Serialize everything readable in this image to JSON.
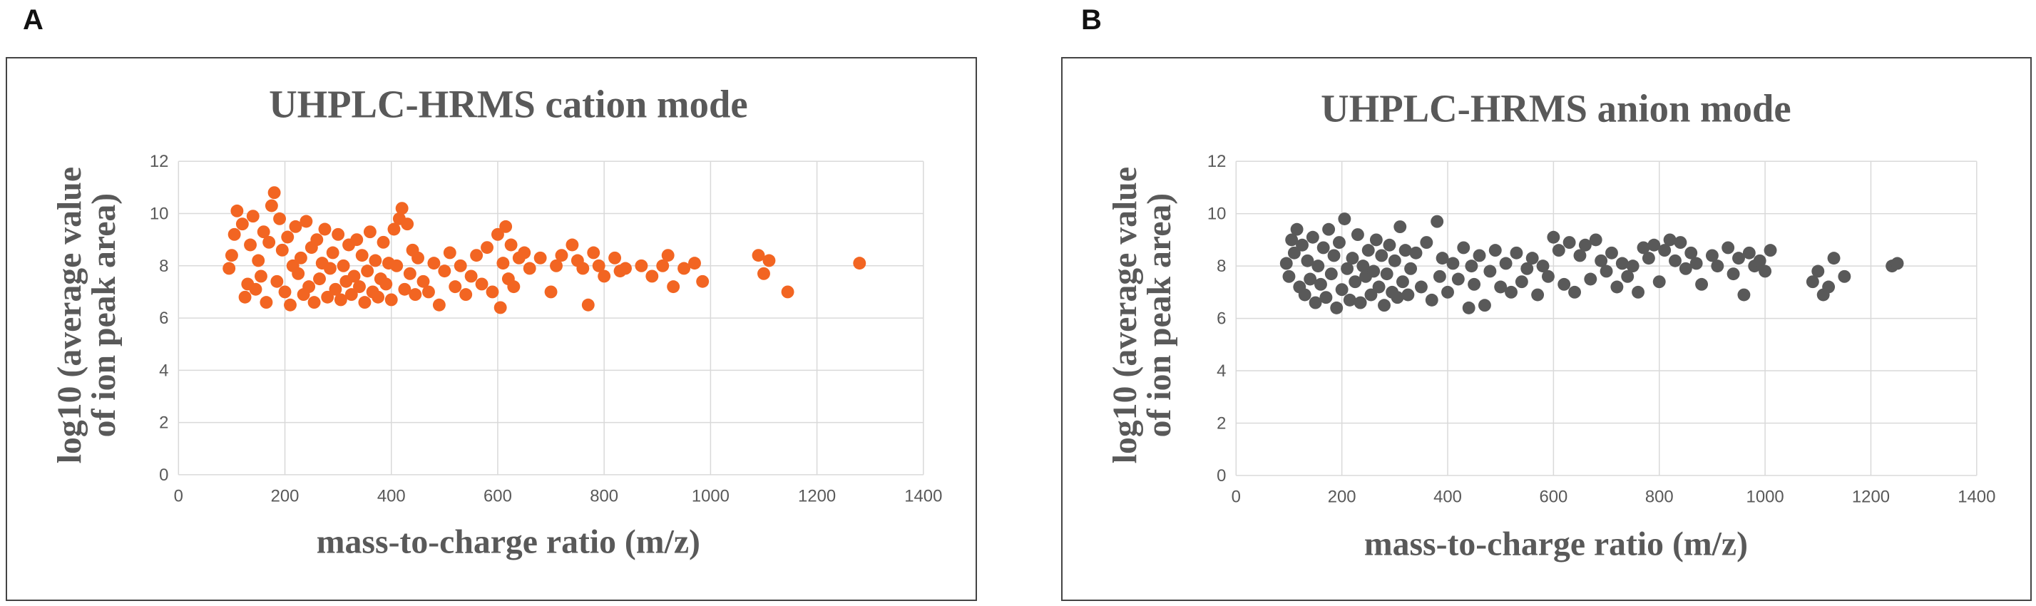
{
  "panels": [
    {
      "letter": "A"
    },
    {
      "letter": "B"
    }
  ],
  "chart_data": [
    {
      "type": "scatter",
      "title": "UHPLC-HRMS cation mode",
      "xlabel": "mass-to-charge ratio (m/z)",
      "ylabel": [
        "log10 (average value",
        "of ion peak area)"
      ],
      "xlim": [
        0,
        1400
      ],
      "ylim": [
        0,
        12
      ],
      "xticks": [
        0,
        200,
        400,
        600,
        800,
        1000,
        1200,
        1400
      ],
      "yticks": [
        0,
        2,
        4,
        6,
        8,
        10,
        12
      ],
      "grid": true,
      "legend": "none",
      "color": "#F26522",
      "series": [
        {
          "points": [
            [
              95,
              7.9
            ],
            [
              100,
              8.4
            ],
            [
              105,
              9.2
            ],
            [
              110,
              10.1
            ],
            [
              120,
              9.6
            ],
            [
              125,
              6.8
            ],
            [
              130,
              7.3
            ],
            [
              135,
              8.8
            ],
            [
              140,
              9.9
            ],
            [
              145,
              7.1
            ],
            [
              150,
              8.2
            ],
            [
              155,
              7.6
            ],
            [
              160,
              9.3
            ],
            [
              165,
              6.6
            ],
            [
              170,
              8.9
            ],
            [
              175,
              10.3
            ],
            [
              180,
              10.8
            ],
            [
              185,
              7.4
            ],
            [
              190,
              9.8
            ],
            [
              195,
              8.6
            ],
            [
              200,
              7.0
            ],
            [
              205,
              9.1
            ],
            [
              210,
              6.5
            ],
            [
              215,
              8.0
            ],
            [
              220,
              9.5
            ],
            [
              225,
              7.7
            ],
            [
              230,
              8.3
            ],
            [
              235,
              6.9
            ],
            [
              240,
              9.7
            ],
            [
              245,
              7.2
            ],
            [
              250,
              8.7
            ],
            [
              255,
              6.6
            ],
            [
              260,
              9.0
            ],
            [
              265,
              7.5
            ],
            [
              270,
              8.1
            ],
            [
              275,
              9.4
            ],
            [
              280,
              6.8
            ],
            [
              285,
              7.9
            ],
            [
              290,
              8.5
            ],
            [
              295,
              7.1
            ],
            [
              300,
              9.2
            ],
            [
              305,
              6.7
            ],
            [
              310,
              8.0
            ],
            [
              315,
              7.4
            ],
            [
              320,
              8.8
            ],
            [
              325,
              6.9
            ],
            [
              330,
              7.6
            ],
            [
              335,
              9.0
            ],
            [
              340,
              7.2
            ],
            [
              345,
              8.4
            ],
            [
              350,
              6.6
            ],
            [
              355,
              7.8
            ],
            [
              360,
              9.3
            ],
            [
              365,
              7.0
            ],
            [
              370,
              8.2
            ],
            [
              375,
              6.8
            ],
            [
              380,
              7.5
            ],
            [
              385,
              8.9
            ],
            [
              390,
              7.3
            ],
            [
              395,
              8.1
            ],
            [
              400,
              6.7
            ],
            [
              405,
              9.4
            ],
            [
              410,
              8.0
            ],
            [
              415,
              9.8
            ],
            [
              420,
              10.2
            ],
            [
              425,
              7.1
            ],
            [
              430,
              9.6
            ],
            [
              435,
              7.7
            ],
            [
              440,
              8.6
            ],
            [
              445,
              6.9
            ],
            [
              450,
              8.3
            ],
            [
              460,
              7.4
            ],
            [
              470,
              7.0
            ],
            [
              480,
              8.1
            ],
            [
              490,
              6.5
            ],
            [
              500,
              7.8
            ],
            [
              510,
              8.5
            ],
            [
              520,
              7.2
            ],
            [
              530,
              8.0
            ],
            [
              540,
              6.9
            ],
            [
              550,
              7.6
            ],
            [
              560,
              8.4
            ],
            [
              570,
              7.3
            ],
            [
              580,
              8.7
            ],
            [
              590,
              7.0
            ],
            [
              600,
              9.2
            ],
            [
              605,
              6.4
            ],
            [
              610,
              8.1
            ],
            [
              615,
              9.5
            ],
            [
              620,
              7.5
            ],
            [
              625,
              8.8
            ],
            [
              630,
              7.2
            ],
            [
              640,
              8.3
            ],
            [
              650,
              8.5
            ],
            [
              660,
              7.9
            ],
            [
              680,
              8.3
            ],
            [
              700,
              7.0
            ],
            [
              710,
              8.0
            ],
            [
              720,
              8.4
            ],
            [
              740,
              8.8
            ],
            [
              750,
              8.2
            ],
            [
              760,
              7.9
            ],
            [
              770,
              6.5
            ],
            [
              780,
              8.5
            ],
            [
              790,
              8.0
            ],
            [
              800,
              7.6
            ],
            [
              820,
              8.3
            ],
            [
              830,
              7.8
            ],
            [
              840,
              7.9
            ],
            [
              870,
              8.0
            ],
            [
              890,
              7.6
            ],
            [
              910,
              8.0
            ],
            [
              920,
              8.4
            ],
            [
              930,
              7.2
            ],
            [
              950,
              7.9
            ],
            [
              970,
              8.1
            ],
            [
              985,
              7.4
            ],
            [
              1090,
              8.4
            ],
            [
              1100,
              7.7
            ],
            [
              1110,
              8.2
            ],
            [
              1145,
              7.0
            ],
            [
              1280,
              8.1
            ]
          ]
        }
      ]
    },
    {
      "type": "scatter",
      "title": "UHPLC-HRMS anion mode",
      "xlabel": "mass-to-charge ratio (m/z)",
      "ylabel": [
        "log10 (average value",
        "of ion peak area)"
      ],
      "xlim": [
        0,
        1400
      ],
      "ylim": [
        0,
        12
      ],
      "xticks": [
        0,
        200,
        400,
        600,
        800,
        1000,
        1200,
        1400
      ],
      "yticks": [
        0,
        2,
        4,
        6,
        8,
        10,
        12
      ],
      "grid": true,
      "legend": "none",
      "color": "#595959",
      "series": [
        {
          "points": [
            [
              95,
              8.1
            ],
            [
              100,
              7.6
            ],
            [
              105,
              9.0
            ],
            [
              110,
              8.5
            ],
            [
              115,
              9.4
            ],
            [
              120,
              7.2
            ],
            [
              125,
              8.8
            ],
            [
              130,
              6.9
            ],
            [
              135,
              8.2
            ],
            [
              140,
              7.5
            ],
            [
              145,
              9.1
            ],
            [
              150,
              6.6
            ],
            [
              155,
              8.0
            ],
            [
              160,
              7.3
            ],
            [
              165,
              8.7
            ],
            [
              170,
              6.8
            ],
            [
              175,
              9.4
            ],
            [
              180,
              7.7
            ],
            [
              185,
              8.4
            ],
            [
              190,
              6.4
            ],
            [
              195,
              8.9
            ],
            [
              200,
              7.1
            ],
            [
              205,
              9.8
            ],
            [
              210,
              7.9
            ],
            [
              215,
              6.7
            ],
            [
              220,
              8.3
            ],
            [
              225,
              7.4
            ],
            [
              230,
              9.2
            ],
            [
              235,
              6.6
            ],
            [
              240,
              8.0
            ],
            [
              245,
              7.6
            ],
            [
              250,
              8.6
            ],
            [
              255,
              6.9
            ],
            [
              260,
              7.8
            ],
            [
              265,
              9.0
            ],
            [
              270,
              7.2
            ],
            [
              275,
              8.4
            ],
            [
              280,
              6.5
            ],
            [
              285,
              7.7
            ],
            [
              290,
              8.8
            ],
            [
              295,
              7.0
            ],
            [
              300,
              8.2
            ],
            [
              305,
              6.8
            ],
            [
              310,
              9.5
            ],
            [
              315,
              7.4
            ],
            [
              320,
              8.6
            ],
            [
              325,
              6.9
            ],
            [
              330,
              7.9
            ],
            [
              340,
              8.5
            ],
            [
              350,
              7.2
            ],
            [
              360,
              8.9
            ],
            [
              370,
              6.7
            ],
            [
              380,
              9.7
            ],
            [
              385,
              7.6
            ],
            [
              390,
              8.3
            ],
            [
              400,
              7.0
            ],
            [
              410,
              8.1
            ],
            [
              420,
              7.5
            ],
            [
              430,
              8.7
            ],
            [
              440,
              6.4
            ],
            [
              445,
              8.0
            ],
            [
              450,
              7.3
            ],
            [
              460,
              8.4
            ],
            [
              470,
              6.5
            ],
            [
              480,
              7.8
            ],
            [
              490,
              8.6
            ],
            [
              500,
              7.2
            ],
            [
              510,
              8.1
            ],
            [
              520,
              7.0
            ],
            [
              530,
              8.5
            ],
            [
              540,
              7.4
            ],
            [
              550,
              7.9
            ],
            [
              560,
              8.3
            ],
            [
              570,
              6.9
            ],
            [
              580,
              8.0
            ],
            [
              590,
              7.6
            ],
            [
              600,
              9.1
            ],
            [
              610,
              8.6
            ],
            [
              620,
              7.3
            ],
            [
              630,
              8.9
            ],
            [
              640,
              7.0
            ],
            [
              650,
              8.4
            ],
            [
              660,
              8.8
            ],
            [
              670,
              7.5
            ],
            [
              680,
              9.0
            ],
            [
              690,
              8.2
            ],
            [
              700,
              7.8
            ],
            [
              710,
              8.5
            ],
            [
              720,
              7.2
            ],
            [
              730,
              8.1
            ],
            [
              740,
              7.6
            ],
            [
              750,
              8.0
            ],
            [
              760,
              7.0
            ],
            [
              770,
              8.7
            ],
            [
              780,
              8.3
            ],
            [
              790,
              8.8
            ],
            [
              800,
              7.4
            ],
            [
              810,
              8.6
            ],
            [
              820,
              9.0
            ],
            [
              830,
              8.2
            ],
            [
              840,
              8.9
            ],
            [
              850,
              7.9
            ],
            [
              860,
              8.5
            ],
            [
              870,
              8.1
            ],
            [
              880,
              7.3
            ],
            [
              900,
              8.4
            ],
            [
              910,
              8.0
            ],
            [
              930,
              8.7
            ],
            [
              940,
              7.7
            ],
            [
              950,
              8.3
            ],
            [
              960,
              6.9
            ],
            [
              970,
              8.5
            ],
            [
              980,
              8.0
            ],
            [
              990,
              8.2
            ],
            [
              1000,
              7.8
            ],
            [
              1010,
              8.6
            ],
            [
              1090,
              7.4
            ],
            [
              1100,
              7.8
            ],
            [
              1110,
              6.9
            ],
            [
              1120,
              7.2
            ],
            [
              1130,
              8.3
            ],
            [
              1150,
              7.6
            ],
            [
              1240,
              8.0
            ],
            [
              1250,
              8.1
            ]
          ]
        }
      ]
    }
  ]
}
